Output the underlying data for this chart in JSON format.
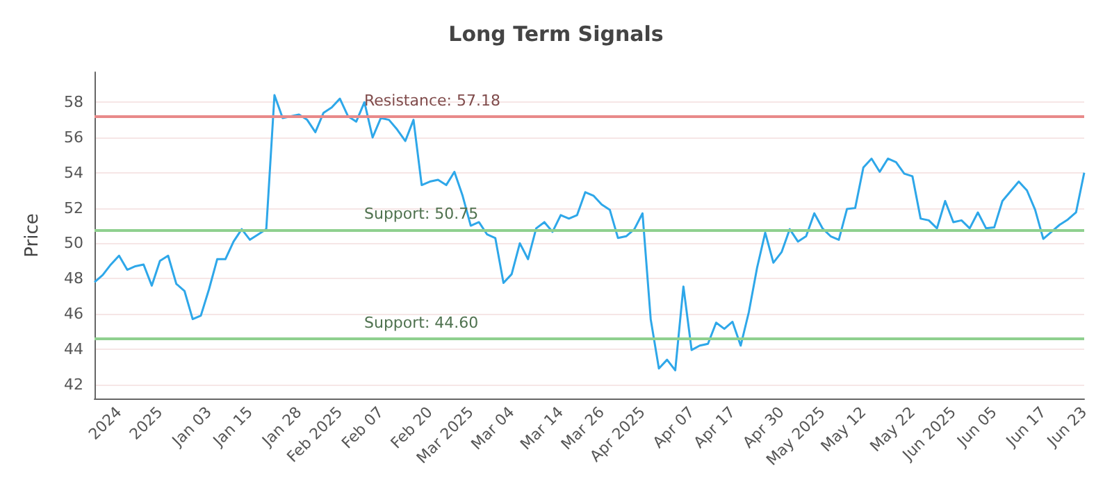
{
  "chart_data": {
    "type": "line",
    "title": "Long Term Signals",
    "ylabel": "Price",
    "categories": [
      null,
      null,
      null,
      "2024",
      null,
      null,
      null,
      null,
      "2025",
      null,
      null,
      null,
      null,
      null,
      "Jan 03",
      null,
      null,
      null,
      null,
      "Jan 15",
      null,
      null,
      null,
      null,
      null,
      "Jan 28",
      null,
      null,
      null,
      null,
      "Feb 2025",
      null,
      null,
      null,
      null,
      "Feb 07",
      null,
      null,
      null,
      null,
      null,
      "Feb 20",
      null,
      null,
      null,
      null,
      "Mar 2025",
      null,
      null,
      null,
      null,
      "Mar 04",
      null,
      null,
      null,
      null,
      null,
      "Mar 14",
      null,
      null,
      null,
      null,
      "Mar 26",
      null,
      null,
      null,
      null,
      "Apr 2025",
      null,
      null,
      null,
      null,
      null,
      "Apr 07",
      null,
      null,
      null,
      null,
      "Apr 17",
      null,
      null,
      null,
      null,
      null,
      "Apr 30",
      null,
      null,
      null,
      null,
      "May 2025",
      null,
      null,
      null,
      null,
      "May 12",
      null,
      null,
      null,
      null,
      null,
      "May 22",
      null,
      null,
      null,
      null,
      "Jun 2025",
      null,
      null,
      null,
      null,
      "Jun 05",
      null,
      null,
      null,
      null,
      null,
      "Jun 17",
      null,
      null,
      null,
      null,
      "Jun 23"
    ],
    "series": [
      {
        "color": "#2ea7e9",
        "values": [
          47.8,
          48.2,
          48.8,
          49.3,
          48.5,
          48.7,
          48.8,
          47.6,
          49.0,
          49.3,
          47.7,
          47.3,
          45.7,
          45.9,
          47.4,
          49.1,
          49.1,
          50.1,
          50.8,
          50.2,
          50.5,
          50.8,
          58.4,
          57.1,
          57.2,
          57.3,
          57.0,
          56.3,
          57.4,
          57.7,
          58.2,
          57.2,
          56.9,
          58.0,
          56.0,
          57.1,
          57.0,
          56.45,
          55.8,
          57.0,
          53.3,
          53.5,
          53.6,
          53.3,
          54.05,
          52.7,
          51.0,
          51.2,
          50.5,
          50.3,
          47.75,
          48.25,
          50.0,
          49.1,
          50.85,
          51.2,
          50.65,
          51.6,
          51.4,
          51.6,
          52.9,
          52.7,
          52.2,
          51.9,
          50.3,
          50.4,
          50.8,
          51.7,
          45.7,
          42.9,
          43.4,
          42.8,
          47.55,
          43.95,
          44.2,
          44.3,
          45.5,
          45.15,
          45.55,
          44.2,
          46.1,
          48.6,
          50.6,
          48.9,
          49.5,
          50.8,
          50.1,
          50.4,
          51.7,
          50.85,
          50.4,
          50.2,
          51.95,
          52.0,
          54.3,
          54.8,
          54.05,
          54.8,
          54.6,
          53.95,
          53.8,
          51.4,
          51.3,
          50.85,
          52.4,
          51.2,
          51.3,
          50.85,
          51.75,
          50.85,
          50.9,
          52.4,
          52.95,
          53.5,
          53.0,
          51.9,
          50.25,
          50.65,
          51.05,
          51.35,
          51.75,
          54.0
        ]
      }
    ],
    "ylim": [
      41.2,
      59.7
    ],
    "yticks": [
      42,
      44,
      46,
      48,
      50,
      52,
      54,
      56,
      58
    ],
    "ref_lines": [
      {
        "axis": "y",
        "value": 57.18,
        "label": "Resistance: 57.18",
        "color": "#e88a8a"
      },
      {
        "axis": "y",
        "value": 50.75,
        "label": "Support: 50.75",
        "color": "#8fd08f"
      },
      {
        "axis": "y",
        "value": 44.6,
        "label": "Support: 44.60",
        "color": "#8fd08f"
      }
    ],
    "grid": "y",
    "marker": "none",
    "line_style": "solid"
  }
}
